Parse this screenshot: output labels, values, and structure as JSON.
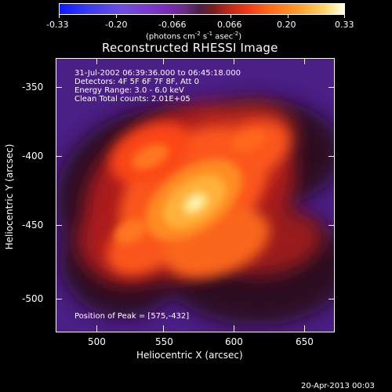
{
  "colorbar": {
    "ticks": [
      "-0.33",
      "-0.20",
      "-0.066",
      "0.066",
      "0.20",
      "0.33"
    ],
    "units_text": "(photons cm",
    "units_sup1": "-2",
    "units_mid": " s",
    "units_sup2": "-1",
    "units_tail": " asec",
    "units_sup3": "-2",
    "units_close": ")"
  },
  "title": "Reconstructed RHESSI Image",
  "info": {
    "line1": "31-Jul-2002 06:39:36.000 to 06:45:18.000",
    "line2": "Detectors: 4F 5F 6F 7F 8F, Att 0",
    "line3": "Energy Range: 3.0 - 6.0 keV",
    "line4": "Clean     Total counts: 2.01E+05"
  },
  "peak": "Position of Peak = [575,-432]",
  "axes": {
    "y_ticks": [
      "-350",
      "-400",
      "-450",
      "-500"
    ],
    "x_ticks": [
      "500",
      "550",
      "600",
      "650"
    ],
    "xlabel": "Heliocentric X (arcsec)",
    "ylabel": "Heliocentric Y (arcsec)"
  },
  "timestamp": "20-Apr-2013 00:03",
  "colors": {
    "background": "#000000",
    "plot_low": "#4a1f86",
    "plot_peak": "#ffffe6"
  }
}
